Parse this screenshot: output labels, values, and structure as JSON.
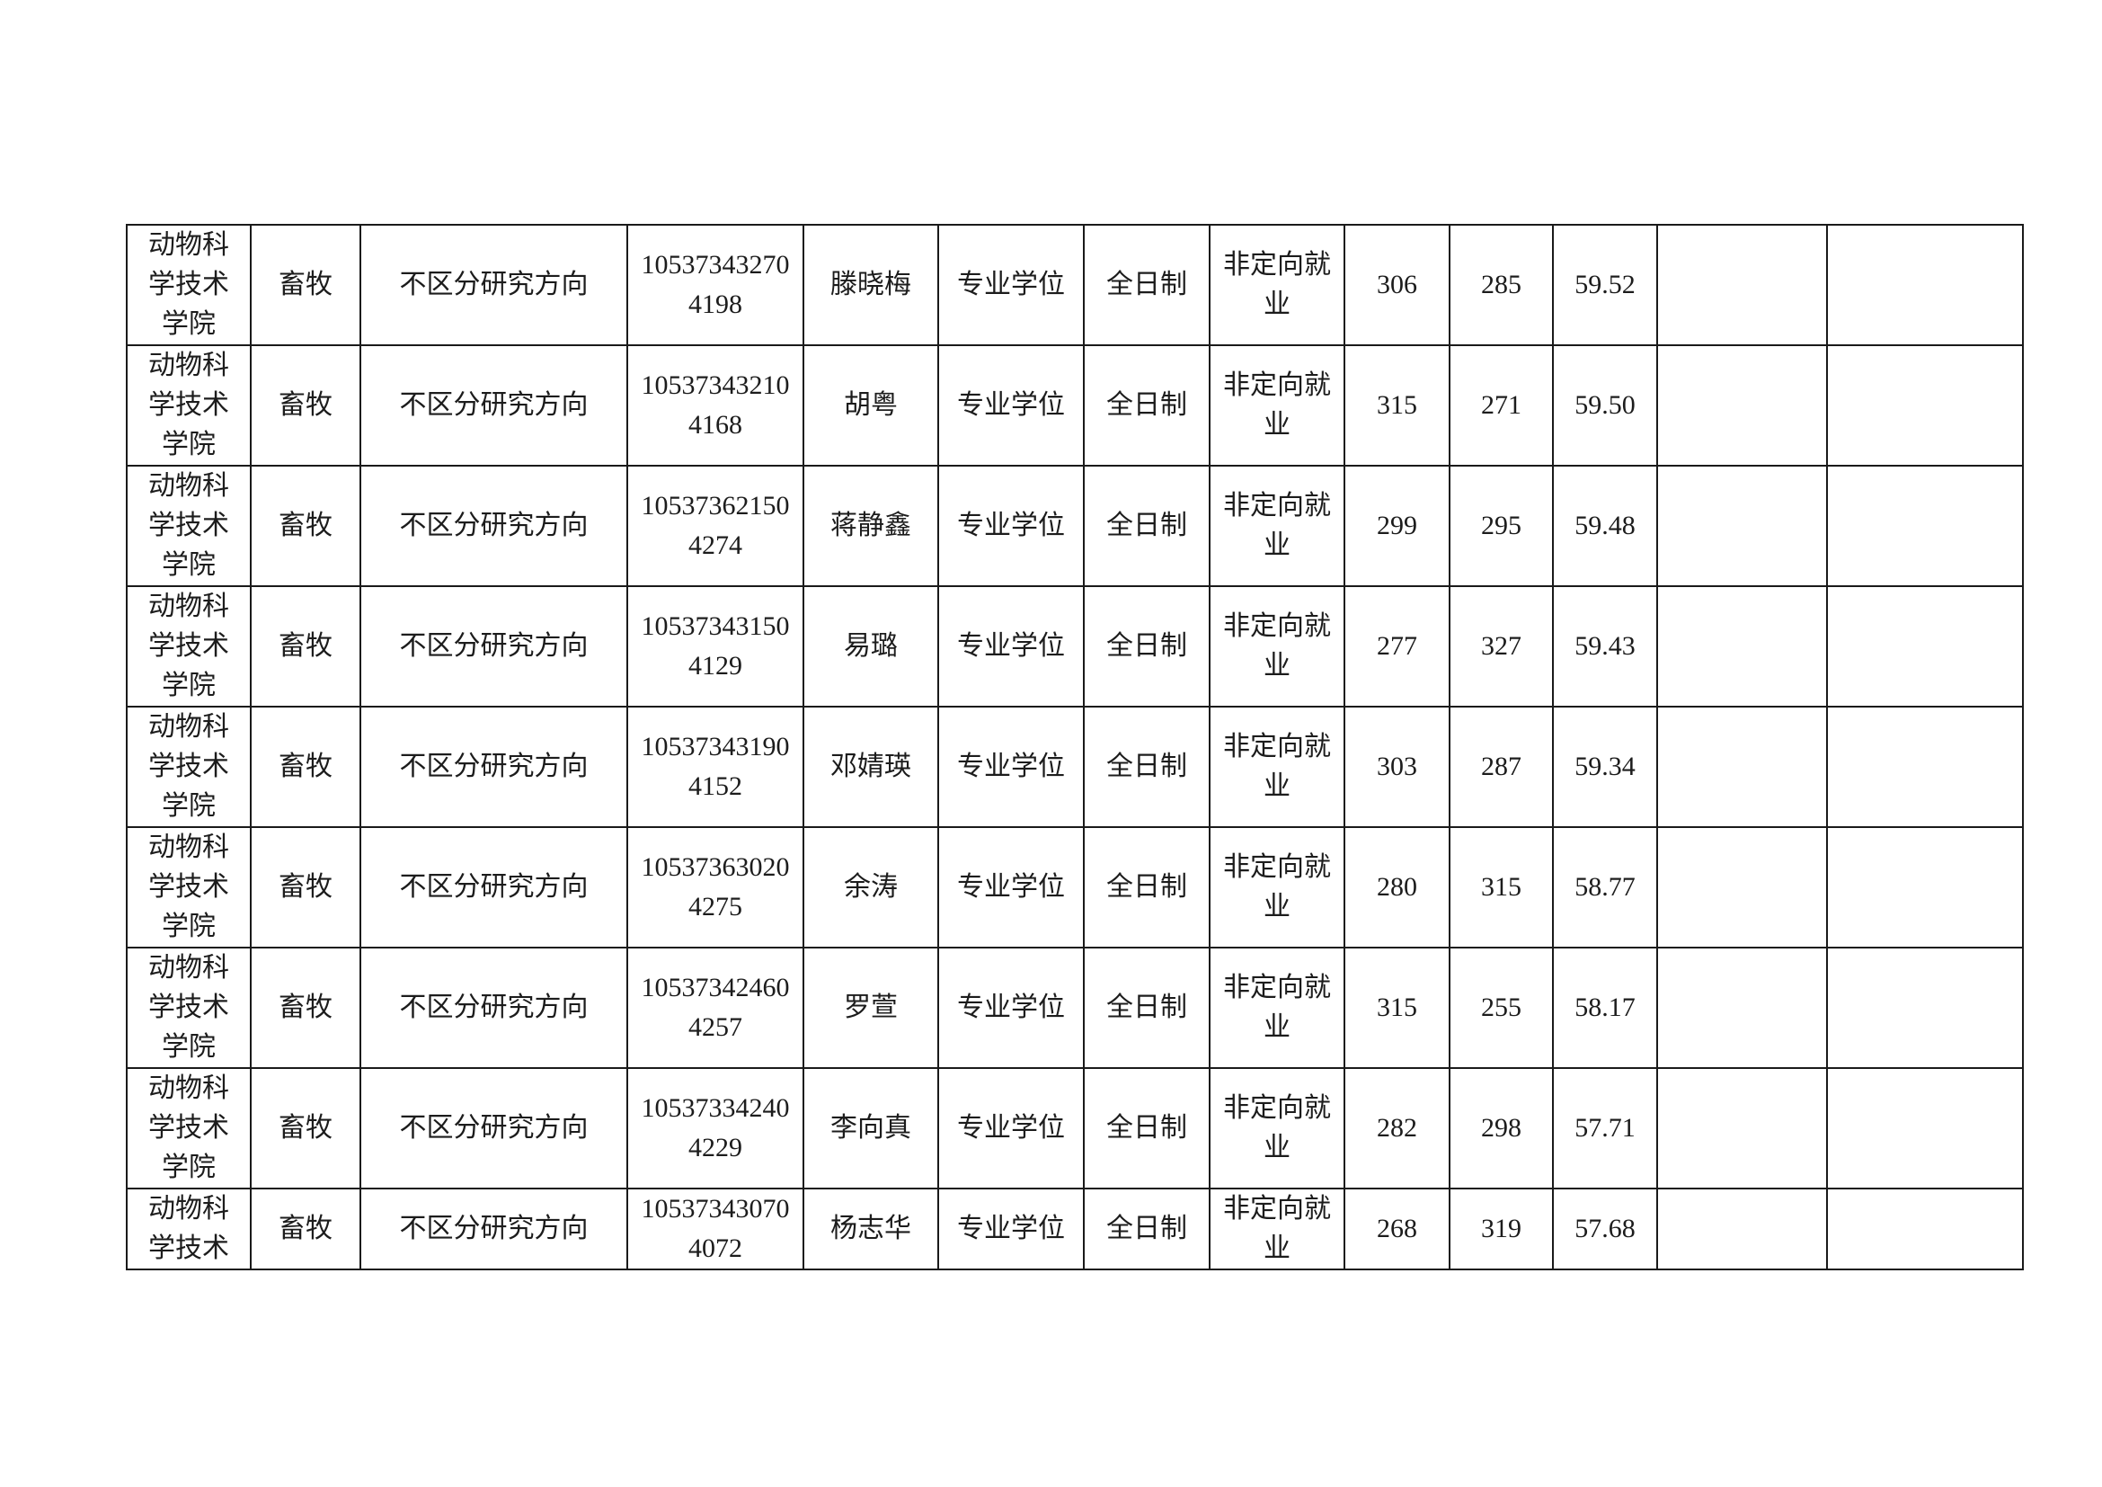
{
  "page": {
    "background": "#ffffff",
    "text_color": "#1c1c1c",
    "border_color": "#1a1a1a"
  },
  "table": {
    "rows": [
      {
        "college": "动物科学技术学院",
        "major": "畜牧",
        "direction": "不区分研究方向",
        "candidate_id": "105373432704198",
        "name": "滕晓梅",
        "degree_type": "专业学位",
        "study_mode": "全日制",
        "employment": "非定向就业",
        "score1": "306",
        "score2": "285",
        "score3": "59.52",
        "blank1": "",
        "blank2": ""
      },
      {
        "college": "动物科学技术学院",
        "major": "畜牧",
        "direction": "不区分研究方向",
        "candidate_id": "105373432104168",
        "name": "胡粤",
        "degree_type": "专业学位",
        "study_mode": "全日制",
        "employment": "非定向就业",
        "score1": "315",
        "score2": "271",
        "score3": "59.50",
        "blank1": "",
        "blank2": ""
      },
      {
        "college": "动物科学技术学院",
        "major": "畜牧",
        "direction": "不区分研究方向",
        "candidate_id": "105373621504274",
        "name": "蒋静鑫",
        "degree_type": "专业学位",
        "study_mode": "全日制",
        "employment": "非定向就业",
        "score1": "299",
        "score2": "295",
        "score3": "59.48",
        "blank1": "",
        "blank2": ""
      },
      {
        "college": "动物科学技术学院",
        "major": "畜牧",
        "direction": "不区分研究方向",
        "candidate_id": "105373431504129",
        "name": "易璐",
        "degree_type": "专业学位",
        "study_mode": "全日制",
        "employment": "非定向就业",
        "score1": "277",
        "score2": "327",
        "score3": "59.43",
        "blank1": "",
        "blank2": ""
      },
      {
        "college": "动物科学技术学院",
        "major": "畜牧",
        "direction": "不区分研究方向",
        "candidate_id": "105373431904152",
        "name": "邓婧瑛",
        "degree_type": "专业学位",
        "study_mode": "全日制",
        "employment": "非定向就业",
        "score1": "303",
        "score2": "287",
        "score3": "59.34",
        "blank1": "",
        "blank2": ""
      },
      {
        "college": "动物科学技术学院",
        "major": "畜牧",
        "direction": "不区分研究方向",
        "candidate_id": "105373630204275",
        "name": "余涛",
        "degree_type": "专业学位",
        "study_mode": "全日制",
        "employment": "非定向就业",
        "score1": "280",
        "score2": "315",
        "score3": "58.77",
        "blank1": "",
        "blank2": ""
      },
      {
        "college": "动物科学技术学院",
        "major": "畜牧",
        "direction": "不区分研究方向",
        "candidate_id": "105373424604257",
        "name": "罗萱",
        "degree_type": "专业学位",
        "study_mode": "全日制",
        "employment": "非定向就业",
        "score1": "315",
        "score2": "255",
        "score3": "58.17",
        "blank1": "",
        "blank2": ""
      },
      {
        "college": "动物科学技术学院",
        "major": "畜牧",
        "direction": "不区分研究方向",
        "candidate_id": "105373342404229",
        "name": "李向真",
        "degree_type": "专业学位",
        "study_mode": "全日制",
        "employment": "非定向就业",
        "score1": "282",
        "score2": "298",
        "score3": "57.71",
        "blank1": "",
        "blank2": ""
      },
      {
        "college": "动物科学技术",
        "major": "畜牧",
        "direction": "不区分研究方向",
        "candidate_id": "105373430704072",
        "name": "杨志华",
        "degree_type": "专业学位",
        "study_mode": "全日制",
        "employment": "非定向就业",
        "score1": "268",
        "score2": "319",
        "score3": "57.68",
        "blank1": "",
        "blank2": ""
      }
    ]
  }
}
